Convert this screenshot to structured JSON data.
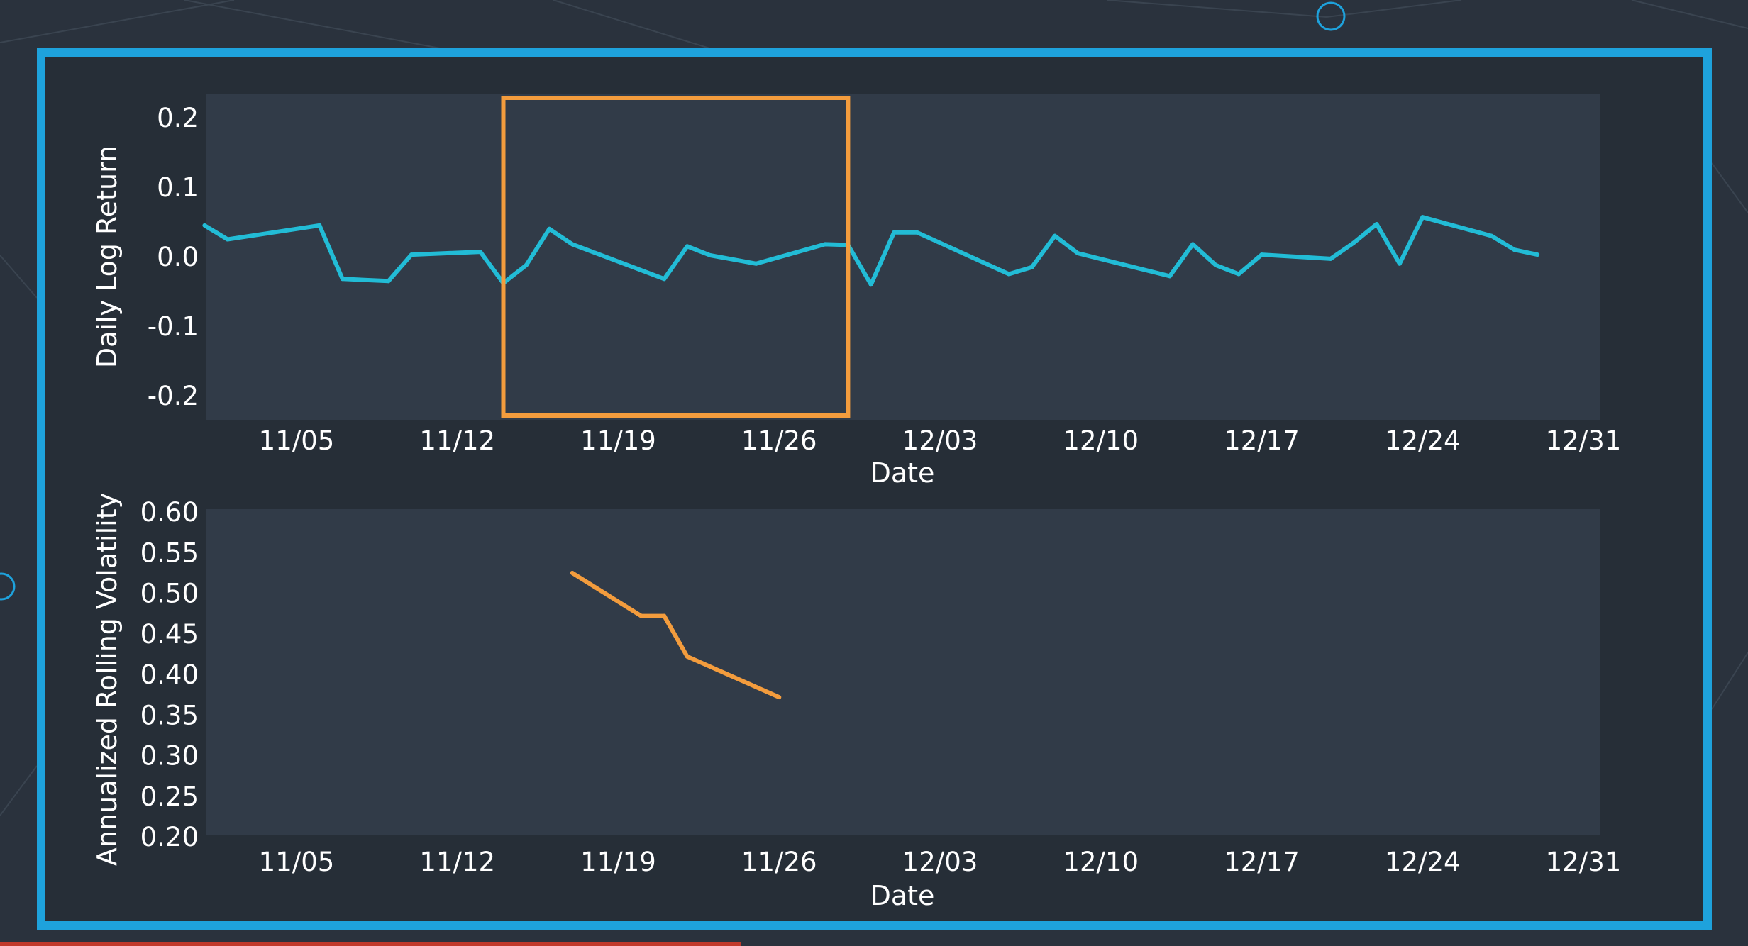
{
  "chart_data": [
    {
      "type": "line",
      "xlabel": "Date",
      "ylabel": "Daily Log Return",
      "ylim": [
        -0.24,
        0.24
      ],
      "x_ticks": [
        "11/05",
        "11/12",
        "11/19",
        "11/26",
        "12/03",
        "12/10",
        "12/17",
        "12/24",
        "12/31"
      ],
      "y_ticks": [
        "0.2",
        "0.1",
        "0.0",
        "-0.1",
        "-0.2"
      ],
      "line_color": "#22bcd6",
      "highlight_box_color": "#f39c3d",
      "highlight_range": [
        "11/14",
        "11/29"
      ],
      "series": [
        {
          "x": [
            "11/01",
            "11/02",
            "11/06",
            "11/07",
            "11/09",
            "11/10",
            "11/13",
            "11/14",
            "11/15",
            "11/16",
            "11/17",
            "11/21",
            "11/22",
            "11/23",
            "11/25",
            "11/28",
            "11/29",
            "11/30",
            "12/01",
            "12/02",
            "12/06",
            "12/07",
            "12/08",
            "12/09",
            "12/13",
            "12/14",
            "12/15",
            "12/16",
            "12/17",
            "12/20",
            "12/21",
            "12/22",
            "12/23",
            "12/24",
            "12/27",
            "12/28",
            "12/29"
          ],
          "values": [
            0.045,
            0.025,
            0.045,
            -0.032,
            -0.035,
            0.003,
            0.007,
            -0.038,
            -0.012,
            0.04,
            0.018,
            -0.032,
            0.015,
            0.002,
            -0.01,
            0.018,
            0.017,
            -0.04,
            0.035,
            0.035,
            -0.025,
            -0.015,
            0.03,
            0.005,
            -0.028,
            0.018,
            -0.012,
            -0.025,
            0.003,
            -0.003,
            0.02,
            0.047,
            -0.01,
            0.057,
            0.03,
            0.01,
            0.003
          ]
        }
      ]
    },
    {
      "type": "line",
      "xlabel": "Date",
      "ylabel": "Annualized Rolling Volatility",
      "ylim": [
        0.2,
        0.6
      ],
      "x_ticks": [
        "11/05",
        "11/12",
        "11/19",
        "11/26",
        "12/03",
        "12/10",
        "12/17",
        "12/24",
        "12/31"
      ],
      "y_ticks": [
        "0.60",
        "0.55",
        "0.50",
        "0.45",
        "0.40",
        "0.35",
        "0.30",
        "0.25",
        "0.20"
      ],
      "line_color": "#f39c3d",
      "series": [
        {
          "x": [
            "11/17",
            "11/20",
            "11/21",
            "11/22",
            "11/26"
          ],
          "values": [
            0.525,
            0.472,
            0.472,
            0.422,
            0.372
          ]
        }
      ]
    }
  ]
}
